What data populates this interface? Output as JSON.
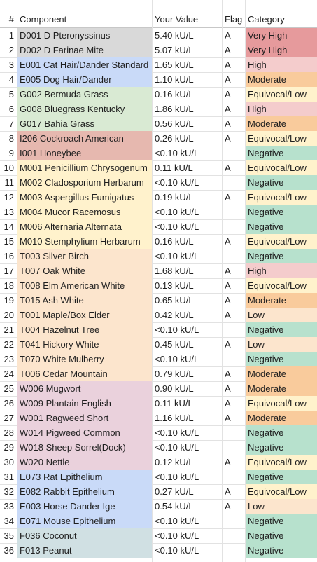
{
  "headers": {
    "num": "#",
    "component": "Component",
    "value": "Your Value",
    "flag": "Flag",
    "category": "Category"
  },
  "colors": {
    "group": {
      "dust": "#d9d9d9",
      "animal": "#c9daf8",
      "grass": "#d9ead3",
      "insect": "#e6b8af",
      "mold": "#fff2cc",
      "tree": "#fce5cd",
      "weed": "#ead1dc",
      "food": "#d0e0e3"
    },
    "category": {
      "Very High": "#e69a9c",
      "High": "#f4cccc",
      "Moderate": "#f9cb9c",
      "Equivocal/Low": "#fff2cc",
      "Low": "#fce5cd",
      "Negative": "#b7e1cd"
    }
  },
  "rows": [
    {
      "num": "1",
      "component": "D001 D Pteronyssinus",
      "value": "5.40 kU/L",
      "flag": "A",
      "category": "Very High",
      "group": "dust"
    },
    {
      "num": "2",
      "component": "D002 D Farinae Mite",
      "value": "5.07 kU/L",
      "flag": "A",
      "category": "Very High",
      "group": "dust"
    },
    {
      "num": "3",
      "component": "E001 Cat Hair/Dander Standard",
      "value": "1.65 kU/L",
      "flag": "A",
      "category": "High",
      "group": "animal"
    },
    {
      "num": "4",
      "component": "E005 Dog Hair/Dander",
      "value": "1.10 kU/L",
      "flag": "A",
      "category": "Moderate",
      "group": "animal"
    },
    {
      "num": "5",
      "component": "G002 Bermuda Grass",
      "value": "0.16 kU/L",
      "flag": "A",
      "category": "Equivocal/Low",
      "group": "grass"
    },
    {
      "num": "6",
      "component": "G008 Bluegrass Kentucky",
      "value": "1.86 kU/L",
      "flag": "A",
      "category": "High",
      "group": "grass"
    },
    {
      "num": "7",
      "component": "G017 Bahia Grass",
      "value": "0.56 kU/L",
      "flag": "A",
      "category": "Moderate",
      "group": "grass"
    },
    {
      "num": "8",
      "component": "I206 Cockroach American",
      "value": "0.26 kU/L",
      "flag": "A",
      "category": "Equivocal/Low",
      "group": "insect"
    },
    {
      "num": "9",
      "component": "I001 Honeybee",
      "value": "<0.10 kU/L",
      "flag": "",
      "category": "Negative",
      "group": "insect"
    },
    {
      "num": "10",
      "component": "M001 Penicillium Chrysogenum",
      "value": "0.11 kU/L",
      "flag": "A",
      "category": "Equivocal/Low",
      "group": "mold"
    },
    {
      "num": "11",
      "component": "M002 Cladosporium Herbarum",
      "value": "<0.10 kU/L",
      "flag": "",
      "category": "Negative",
      "group": "mold"
    },
    {
      "num": "12",
      "component": "M003 Aspergillus Fumigatus",
      "value": "0.19 kU/L",
      "flag": "A",
      "category": "Equivocal/Low",
      "group": "mold"
    },
    {
      "num": "13",
      "component": "M004 Mucor Racemosus",
      "value": "<0.10 kU/L",
      "flag": "",
      "category": "Negative",
      "group": "mold"
    },
    {
      "num": "14",
      "component": "M006 Alternaria Alternata",
      "value": "<0.10 kU/L",
      "flag": "",
      "category": "Negative",
      "group": "mold"
    },
    {
      "num": "15",
      "component": "M010 Stemphylium Herbarum",
      "value": "0.16 kU/L",
      "flag": "A",
      "category": "Equivocal/Low",
      "group": "mold"
    },
    {
      "num": "16",
      "component": "T003 Silver Birch",
      "value": "<0.10 kU/L",
      "flag": "",
      "category": "Negative",
      "group": "tree"
    },
    {
      "num": "17",
      "component": "T007 Oak White",
      "value": "1.68 kU/L",
      "flag": "A",
      "category": "High",
      "group": "tree"
    },
    {
      "num": "18",
      "component": "T008 Elm American White",
      "value": "0.13 kU/L",
      "flag": "A",
      "category": "Equivocal/Low",
      "group": "tree"
    },
    {
      "num": "19",
      "component": "T015 Ash White",
      "value": "0.65 kU/L",
      "flag": "A",
      "category": "Moderate",
      "group": "tree"
    },
    {
      "num": "20",
      "component": "T001 Maple/Box Elder",
      "value": "0.42 kU/L",
      "flag": "A",
      "category": "Low",
      "group": "tree"
    },
    {
      "num": "21",
      "component": "T004 Hazelnut Tree",
      "value": "<0.10 kU/L",
      "flag": "",
      "category": "Negative",
      "group": "tree"
    },
    {
      "num": "22",
      "component": "T041 Hickory White",
      "value": "0.45 kU/L",
      "flag": "A",
      "category": "Low",
      "group": "tree"
    },
    {
      "num": "23",
      "component": "T070 White Mulberry",
      "value": "<0.10 kU/L",
      "flag": "",
      "category": "Negative",
      "group": "tree"
    },
    {
      "num": "24",
      "component": "T006 Cedar Mountain",
      "value": "0.79 kU/L",
      "flag": "A",
      "category": "Moderate",
      "group": "tree"
    },
    {
      "num": "25",
      "component": "W006 Mugwort",
      "value": "0.90 kU/L",
      "flag": "A",
      "category": "Moderate",
      "group": "weed"
    },
    {
      "num": "26",
      "component": "W009 Plantain English",
      "value": "0.11 kU/L",
      "flag": "A",
      "category": "Equivocal/Low",
      "group": "weed"
    },
    {
      "num": "27",
      "component": "W001 Ragweed Short",
      "value": "1.16 kU/L",
      "flag": "A",
      "category": "Moderate",
      "group": "weed"
    },
    {
      "num": "28",
      "component": "W014 Pigweed Common",
      "value": "<0.10 kU/L",
      "flag": "",
      "category": "Negative",
      "group": "weed"
    },
    {
      "num": "29",
      "component": "W018 Sheep Sorrel(Dock)",
      "value": "<0.10 kU/L",
      "flag": "",
      "category": "Negative",
      "group": "weed"
    },
    {
      "num": "30",
      "component": "W020 Nettle",
      "value": "0.12 kU/L",
      "flag": "A",
      "category": "Equivocal/Low",
      "group": "weed"
    },
    {
      "num": "31",
      "component": "E073 Rat Epithelium",
      "value": "<0.10 kU/L",
      "flag": "",
      "category": "Negative",
      "group": "animal"
    },
    {
      "num": "32",
      "component": "E082 Rabbit Epithelium",
      "value": "0.27 kU/L",
      "flag": "A",
      "category": "Equivocal/Low",
      "group": "animal"
    },
    {
      "num": "33",
      "component": "E003 Horse Dander Ige",
      "value": "0.54 kU/L",
      "flag": "A",
      "category": "Low",
      "group": "animal"
    },
    {
      "num": "34",
      "component": "E071 Mouse Epithelium",
      "value": "<0.10 kU/L",
      "flag": "",
      "category": "Negative",
      "group": "animal"
    },
    {
      "num": "35",
      "component": "F036 Coconut",
      "value": "<0.10 kU/L",
      "flag": "",
      "category": "Negative",
      "group": "food"
    },
    {
      "num": "36",
      "component": "F013 Peanut",
      "value": "<0.10 kU/L",
      "flag": "",
      "category": "Negative",
      "group": "food"
    }
  ]
}
